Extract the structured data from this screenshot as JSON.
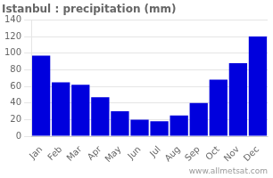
{
  "chart_data": {
    "type": "bar",
    "title": "Istanbul : precipitation (mm)",
    "categories": [
      "Jan",
      "Feb",
      "Mar",
      "Apr",
      "May",
      "Jun",
      "Jul",
      "Aug",
      "Sep",
      "Oct",
      "Nov",
      "Dec"
    ],
    "values": [
      97,
      65,
      62,
      47,
      30,
      20,
      18,
      25,
      40,
      68,
      88,
      120
    ],
    "color": "#0000dd",
    "ylim": [
      0,
      140
    ],
    "yticks": [
      0,
      20,
      40,
      60,
      80,
      100,
      120,
      140
    ],
    "grid": true,
    "annotations": [
      "www.allmetsat.com"
    ]
  }
}
